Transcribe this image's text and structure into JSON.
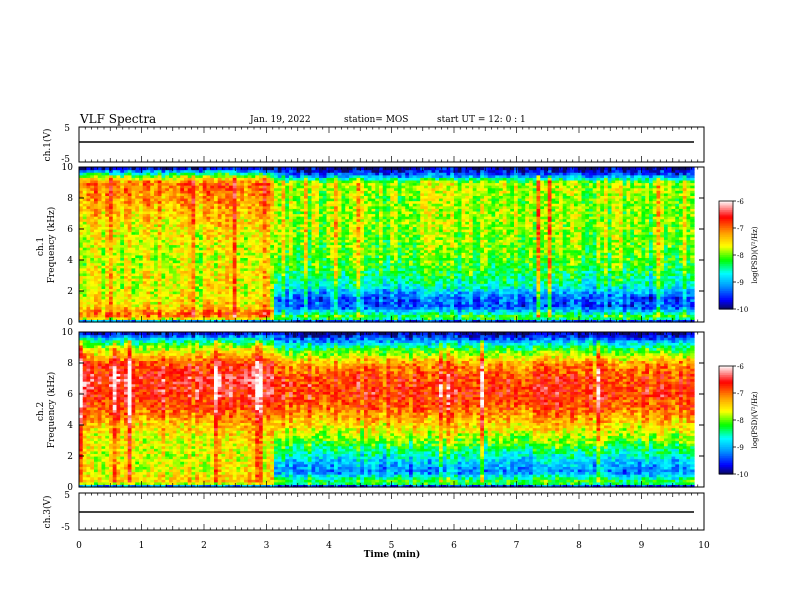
{
  "header": {
    "title": "VLF Spectra",
    "date": "Jan. 19, 2022",
    "station": "station= MOS",
    "start": "start  UT =   12: 0  : 1"
  },
  "colors": {
    "axis": "#000000",
    "trace": "#000000",
    "cmap": [
      "#0a0a5e",
      "#0000ff",
      "#00a0ff",
      "#00ffff",
      "#00ff00",
      "#ffff00",
      "#ffa000",
      "#ff0000",
      "#ffffff"
    ]
  },
  "chart_data": [
    {
      "type": "line",
      "panel": "ch1-waveform",
      "ylabel": "ch.1(V)",
      "yticks": [
        "5",
        "-5"
      ],
      "ylim": [
        -5,
        5
      ],
      "xlim": [
        0,
        10
      ],
      "x": [
        0,
        9.84
      ],
      "series": [
        {
          "values": [
            0,
            0
          ]
        }
      ]
    },
    {
      "type": "heatmap",
      "panel": "ch1-spectrogram",
      "ylabel": "ch.1\nFrequency  (kHz)",
      "ylim": [
        0,
        10
      ],
      "yticks": [
        "0",
        "2",
        "4",
        "6",
        "8",
        "10"
      ],
      "xlim": [
        0,
        10
      ],
      "data_end_min": 9.84,
      "colorbar": {
        "label": "log(PSD)(V²/Hz)",
        "range": [
          -10,
          -6
        ],
        "ticks": [
          "-6",
          "-7",
          "-8",
          "-9",
          "-10"
        ]
      },
      "segments": [
        {
          "t_start": 0,
          "t_end": 3.15,
          "profile_khz": [
            0,
            0.3,
            0.6,
            1.0,
            2.0,
            3.0,
            4.0,
            6.0,
            8.0,
            9.0,
            9.4,
            9.7,
            10
          ],
          "profile_log_psd": [
            -9.8,
            -7.2,
            -7.0,
            -7.5,
            -7.7,
            -7.6,
            -7.8,
            -7.6,
            -7.2,
            -7.0,
            -7.9,
            -8.8,
            -10
          ]
        },
        {
          "t_start": 3.15,
          "t_end": 9.84,
          "profile_khz": [
            0,
            0.3,
            1.0,
            1.6,
            2.5,
            4.0,
            6.0,
            8.0,
            9.0,
            9.5,
            10
          ],
          "profile_log_psd": [
            -10,
            -8.0,
            -9.4,
            -9.3,
            -8.5,
            -8.1,
            -7.9,
            -7.9,
            -7.8,
            -9.3,
            -10
          ]
        }
      ]
    },
    {
      "type": "heatmap",
      "panel": "ch2-spectrogram",
      "ylabel": "ch.2\nFrequency  (kHz)",
      "ylim": [
        0,
        10
      ],
      "yticks": [
        "0",
        "2",
        "4",
        "6",
        "8",
        "10"
      ],
      "xlim": [
        0,
        10
      ],
      "data_end_min": 9.84,
      "colorbar": {
        "label": "log(PSD)(V²/Hz)",
        "range": [
          -10,
          -6
        ],
        "ticks": [
          "-6",
          "-7",
          "-8",
          "-9",
          "-10"
        ]
      },
      "segments": [
        {
          "t_start": 0,
          "t_end": 3.15,
          "profile_khz": [
            0,
            0.3,
            1.0,
            2.0,
            3.0,
            4.0,
            5.0,
            6.0,
            7.0,
            8.0,
            9.0,
            9.6,
            10
          ],
          "profile_log_psd": [
            -9.8,
            -7.4,
            -7.6,
            -7.7,
            -7.6,
            -7.4,
            -6.9,
            -6.6,
            -6.5,
            -6.8,
            -7.8,
            -8.8,
            -10
          ]
        },
        {
          "t_start": 3.15,
          "t_end": 9.84,
          "profile_khz": [
            0,
            0.3,
            1.0,
            1.8,
            3.0,
            4.0,
            5.0,
            6.0,
            7.0,
            8.0,
            9.0,
            9.6,
            10
          ],
          "profile_log_psd": [
            -10,
            -8.0,
            -9.2,
            -8.8,
            -8.0,
            -7.5,
            -7.0,
            -6.7,
            -6.8,
            -7.2,
            -8.3,
            -9.3,
            -10
          ]
        }
      ]
    },
    {
      "type": "line",
      "panel": "ch3-waveform",
      "ylabel": "ch.3(V)",
      "yticks": [
        "5",
        "-5"
      ],
      "ylim": [
        -5,
        5
      ],
      "xlim": [
        0,
        10
      ],
      "x": [
        0,
        9.84
      ],
      "series": [
        {
          "values": [
            0,
            0
          ]
        }
      ]
    }
  ],
  "x_axis": {
    "label": "Time  (min)",
    "ticks": [
      "0",
      "1",
      "2",
      "3",
      "4",
      "5",
      "6",
      "7",
      "8",
      "9",
      "10"
    ]
  }
}
